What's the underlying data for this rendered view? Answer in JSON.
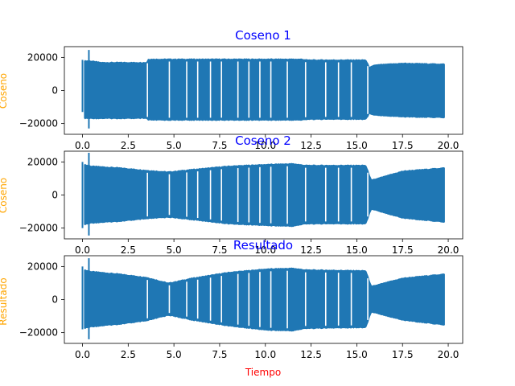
{
  "colors": {
    "signal": "#1f77b4",
    "title": "#0000ff",
    "ylabel": "#ffa500",
    "xlabel": "#ff0000",
    "axis": "#000000"
  },
  "chart_data": [
    {
      "type": "line",
      "title": "Coseno 1",
      "ylabel": "Coseno",
      "xlabel": "",
      "xlim": [
        -0.99,
        20.79
      ],
      "ylim": [
        -26500,
        26500
      ],
      "xticks": [
        "0.0",
        "2.5",
        "5.0",
        "7.5",
        "10.0",
        "12.5",
        "15.0",
        "17.5",
        "20.0"
      ],
      "yticks": [
        "20000",
        "0",
        "−20000"
      ],
      "envelope": {
        "x": [
          0.1,
          0.4,
          1.0,
          3.5,
          3.6,
          4.7,
          4.8,
          12.0,
          12.3,
          15.5,
          15.7,
          16.0,
          17.5,
          19.8
        ],
        "upper": [
          18000,
          18000,
          17000,
          17000,
          19000,
          19000,
          19000,
          19000,
          18500,
          18500,
          14000,
          15500,
          16500,
          16000
        ],
        "lower": [
          -17000,
          -17000,
          -17000,
          -17000,
          -18000,
          -18000,
          -18000,
          -18000,
          -17500,
          -17500,
          -14000,
          -15000,
          -16000,
          -16500
        ]
      },
      "spikes": [
        {
          "x": 0.0,
          "max": 18500,
          "min": -13000
        },
        {
          "x": 0.35,
          "max": 24500,
          "min": -23000
        }
      ],
      "gaps": [
        3.55,
        4.75,
        5.7,
        6.3,
        7.0,
        7.6,
        8.5,
        9.1,
        9.7,
        10.3,
        11.2,
        12.2,
        13.3,
        14.0,
        14.7,
        15.6
      ]
    },
    {
      "type": "line",
      "title": "Coseno 2",
      "ylabel": "Coseno",
      "xlabel": "",
      "xlim": [
        -0.99,
        20.79
      ],
      "ylim": [
        -26500,
        26500
      ],
      "xticks": [
        "0.0",
        "2.5",
        "5.0",
        "7.5",
        "10.0",
        "12.5",
        "15.0",
        "17.5",
        "20.0"
      ],
      "yticks": [
        "20000",
        "0",
        "−20000"
      ],
      "envelope": {
        "x": [
          0.1,
          0.5,
          2.0,
          3.5,
          4.7,
          6.0,
          8.0,
          10.0,
          11.5,
          12.2,
          15.5,
          15.8,
          17.5,
          19.8
        ],
        "upper": [
          18500,
          17500,
          16500,
          15000,
          14000,
          15500,
          17500,
          18500,
          19000,
          18000,
          18000,
          9000,
          14500,
          16500
        ],
        "lower": [
          -18000,
          -17000,
          -16000,
          -14500,
          -13500,
          -15000,
          -17500,
          -18500,
          -19000,
          -17500,
          -17500,
          -8500,
          -14000,
          -16500
        ]
      },
      "spikes": [
        {
          "x": 0.0,
          "max": 20000,
          "min": -20000
        },
        {
          "x": 0.35,
          "max": 25500,
          "min": -24500
        }
      ],
      "gaps": [
        3.55,
        4.75,
        5.7,
        6.3,
        7.0,
        7.6,
        8.5,
        9.1,
        9.7,
        10.3,
        11.2,
        12.2,
        13.3,
        14.0,
        14.7,
        15.6
      ]
    },
    {
      "type": "line",
      "title": "Resultado",
      "ylabel": "Resultado",
      "xlabel": "Tiempo",
      "xlim": [
        -0.99,
        20.79
      ],
      "ylim": [
        -26500,
        26500
      ],
      "xticks": [
        "0.0",
        "2.5",
        "5.0",
        "7.5",
        "10.0",
        "12.5",
        "15.0",
        "17.5",
        "20.0"
      ],
      "yticks": [
        "20000",
        "0",
        "−20000"
      ],
      "envelope": {
        "x": [
          0.1,
          0.5,
          2.0,
          3.5,
          4.7,
          6.0,
          8.0,
          10.0,
          11.5,
          12.2,
          15.5,
          15.8,
          17.5,
          19.8
        ],
        "upper": [
          18000,
          17000,
          15500,
          13500,
          10000,
          13000,
          16500,
          18500,
          19000,
          18000,
          17500,
          8000,
          13000,
          15500
        ],
        "lower": [
          -17500,
          -16500,
          -15000,
          -13000,
          -9500,
          -12500,
          -16000,
          -18500,
          -19000,
          -17500,
          -17000,
          -7500,
          -12500,
          -15500
        ]
      },
      "spikes": [
        {
          "x": 0.0,
          "max": 20000,
          "min": -18000
        },
        {
          "x": 0.35,
          "max": 25000,
          "min": -24000
        }
      ],
      "gaps": [
        3.55,
        4.75,
        5.7,
        6.3,
        7.0,
        7.6,
        8.5,
        9.1,
        9.7,
        10.3,
        11.2,
        12.2,
        13.3,
        14.0,
        14.7,
        15.6
      ]
    }
  ]
}
